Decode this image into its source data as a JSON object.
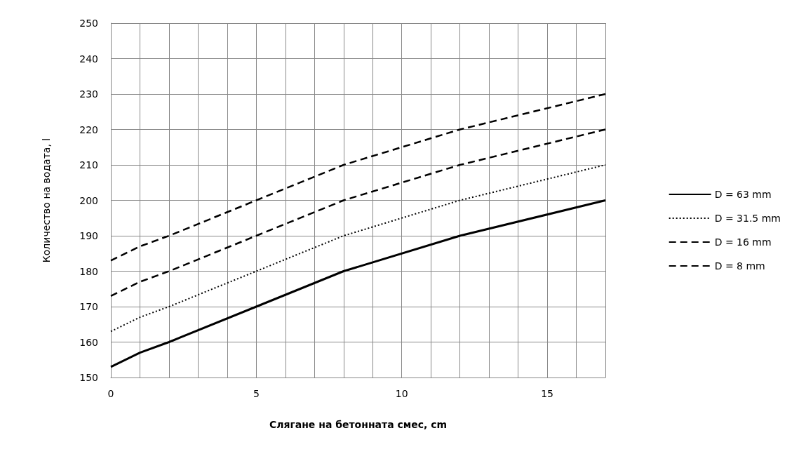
{
  "chart_data": {
    "type": "line",
    "xlabel": "Слягане на бетонната смес, cm",
    "ylabel": "Количество на водата, l",
    "xlim": [
      0,
      17
    ],
    "ylim": [
      150,
      250
    ],
    "xticks": [
      0,
      {
        "value": 1,
        "label": null
      },
      {
        "value": 2,
        "label": null
      },
      {
        "value": 3,
        "label": null
      },
      {
        "value": 4,
        "label": null
      },
      5,
      {
        "value": 6,
        "label": null
      },
      {
        "value": 7,
        "label": null
      },
      {
        "value": 8,
        "label": null
      },
      {
        "value": 9,
        "label": null
      },
      10,
      {
        "value": 11,
        "label": null
      },
      {
        "value": 12,
        "label": null
      },
      {
        "value": 13,
        "label": null
      },
      {
        "value": 14,
        "label": null
      },
      15,
      {
        "value": 16,
        "label": null
      },
      {
        "value": 17,
        "label": null
      }
    ],
    "yticks": [
      150,
      160,
      170,
      180,
      190,
      200,
      210,
      220,
      230,
      240,
      250
    ],
    "x": [
      0,
      1,
      2,
      5,
      8,
      12,
      17
    ],
    "series": [
      {
        "name": "D = 63 mm",
        "color": "#000000",
        "line_style": "solid",
        "values": [
          153,
          157,
          160,
          170,
          180,
          190,
          200
        ]
      },
      {
        "name": "D = 31.5 mm",
        "color": "#000000",
        "line_style": "dotted",
        "values": [
          163,
          167,
          170,
          180,
          190,
          200,
          210
        ]
      },
      {
        "name": "D = 16 mm",
        "color": "#000000",
        "line_style": "dashed",
        "values": [
          173,
          177,
          180,
          190,
          200,
          210,
          220
        ]
      },
      {
        "name": "D = 8 mm",
        "color": "#000000",
        "line_style": "dashed",
        "values": [
          183,
          187,
          190,
          200,
          210,
          220,
          230
        ]
      }
    ],
    "grid": true,
    "legend": "right",
    "marker": "none"
  }
}
